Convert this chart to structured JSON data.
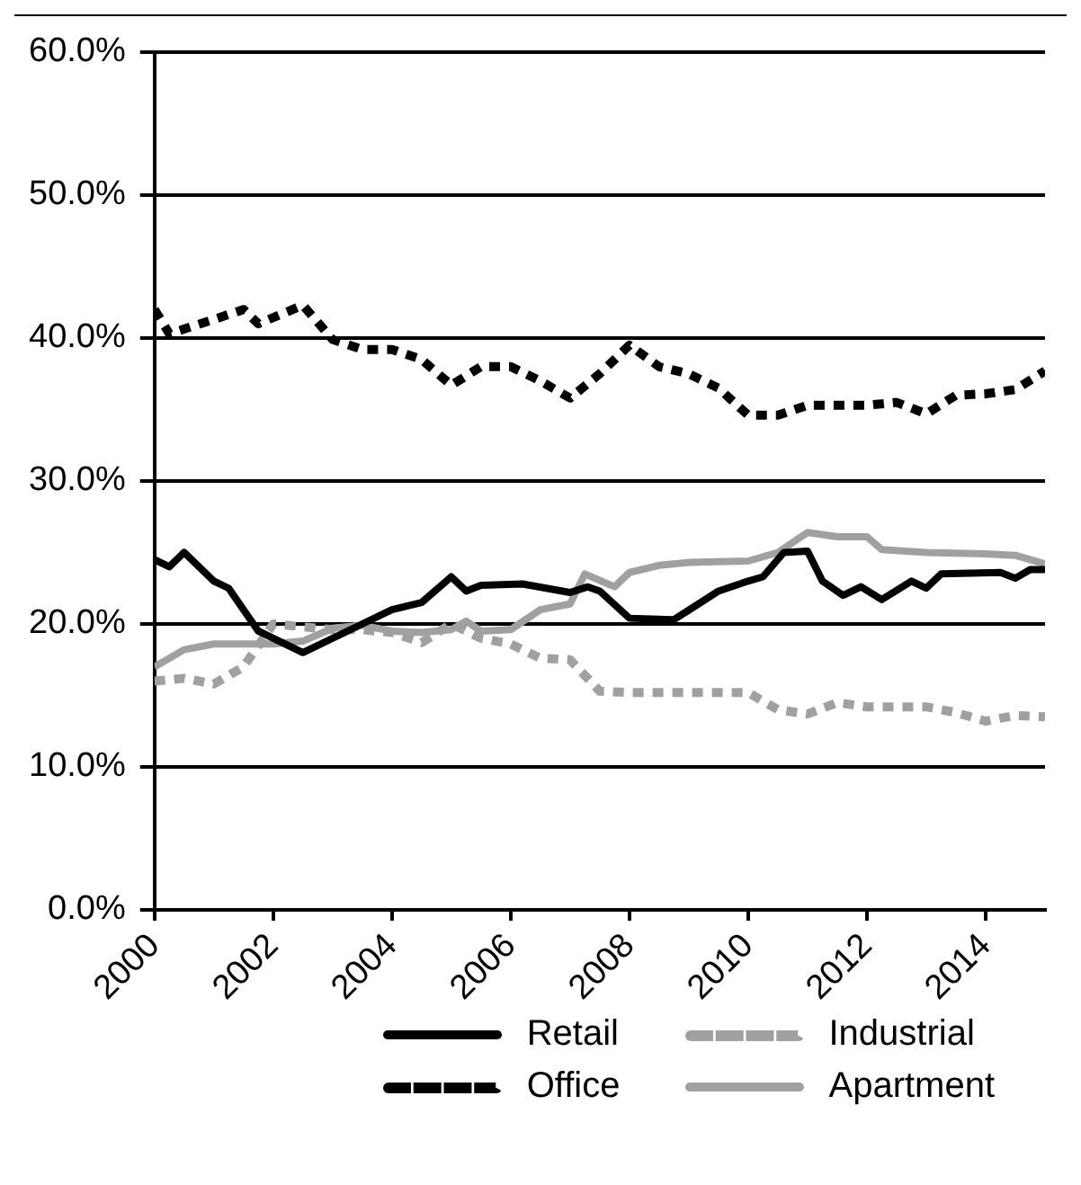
{
  "chart_data": {
    "type": "line",
    "xlim": [
      2000,
      2015
    ],
    "xticks": [
      2000,
      2002,
      2004,
      2006,
      2008,
      2010,
      2012,
      2014
    ],
    "ylim": [
      0,
      60
    ],
    "yticks": [
      {
        "value": 0,
        "label": "0.0%"
      },
      {
        "value": 10,
        "label": "10.0%"
      },
      {
        "value": 20,
        "label": "20.0%"
      },
      {
        "value": 30,
        "label": "30.0%"
      },
      {
        "value": 40,
        "label": "40.0%"
      },
      {
        "value": 50,
        "label": "50.0%"
      },
      {
        "value": 60,
        "label": "60.0%"
      }
    ],
    "grid": "y",
    "legend": "bottom",
    "marker": "none",
    "series": [
      {
        "name": "Retail",
        "color": "#000000",
        "line_style": "solid",
        "x": [
          2000,
          2000.25,
          2000.5,
          2001,
          2001.25,
          2001.75,
          2002.5,
          2003.5,
          2004,
          2004.5,
          2005,
          2005.25,
          2005.5,
          2006.2,
          2007,
          2007.3,
          2007.5,
          2008,
          2008.75,
          2009.5,
          2010,
          2010.25,
          2010.6,
          2011,
          2011.25,
          2011.6,
          2011.9,
          2012.25,
          2012.75,
          2013,
          2013.25,
          2014.25,
          2014.5,
          2014.75,
          2015
        ],
        "values": [
          24.5,
          24,
          25,
          23,
          22.5,
          19.5,
          18,
          20,
          21,
          21.5,
          23.3,
          22.3,
          22.7,
          22.8,
          22.2,
          22.6,
          22.3,
          20.4,
          20.3,
          22.3,
          23,
          23.3,
          25,
          25.1,
          23,
          22,
          22.6,
          21.7,
          23,
          22.5,
          23.5,
          23.6,
          23.2,
          23.8,
          23.8
        ]
      },
      {
        "name": "Industrial",
        "color": "#a0a0a0",
        "line_style": "dashed",
        "x": [
          2000,
          2000.5,
          2001,
          2001.5,
          2002,
          2002.5,
          2003,
          2003.5,
          2004,
          2004.5,
          2005,
          2005.5,
          2006,
          2006.5,
          2007,
          2007.5,
          2008,
          2008.5,
          2009,
          2010,
          2010.5,
          2011,
          2011.5,
          2012,
          2012.5,
          2013,
          2013.5,
          2014,
          2014.5,
          2015
        ],
        "values": [
          16,
          16.2,
          15.8,
          17,
          20,
          19.8,
          19.6,
          19.6,
          19.4,
          18.7,
          20,
          19,
          18.6,
          17.6,
          17.5,
          15.3,
          15.2,
          15.2,
          15.2,
          15.2,
          14,
          13.7,
          14.5,
          14.2,
          14.2,
          14.2,
          13.8,
          13.2,
          13.6,
          13.5
        ]
      },
      {
        "name": "Office",
        "color": "#000000",
        "line_style": "dashed",
        "x": [
          2000,
          2000.25,
          2001,
          2001.5,
          2001.75,
          2002.5,
          2003,
          2003.5,
          2004,
          2004.5,
          2005,
          2005.5,
          2006,
          2006.5,
          2007,
          2007.5,
          2008,
          2008.5,
          2009,
          2009.5,
          2010,
          2010.5,
          2011,
          2012,
          2012.5,
          2013,
          2013.5,
          2014,
          2014.5,
          2015
        ],
        "values": [
          42,
          40.3,
          41.3,
          42,
          41,
          42.3,
          39.9,
          39.2,
          39.2,
          38.5,
          36.7,
          38,
          38,
          37,
          35.8,
          37.5,
          39.5,
          38,
          37.5,
          36.5,
          34.6,
          34.6,
          35.3,
          35.3,
          35.5,
          34.7,
          36,
          36.1,
          36.4,
          37.7
        ]
      },
      {
        "name": "Apartment",
        "color": "#a0a0a0",
        "line_style": "solid",
        "x": [
          2000,
          2000.5,
          2001,
          2002,
          2002.5,
          2003,
          2003.5,
          2004,
          2004.5,
          2005,
          2005.25,
          2005.5,
          2006,
          2006.5,
          2007,
          2007.25,
          2007.75,
          2008,
          2008.5,
          2009,
          2010,
          2010.5,
          2011,
          2011.5,
          2012,
          2012.25,
          2013,
          2014,
          2014.5,
          2015
        ],
        "values": [
          17,
          18.2,
          18.6,
          18.6,
          18.8,
          19.7,
          19.9,
          19.5,
          19.4,
          19.6,
          20.2,
          19.5,
          19.6,
          21,
          21.4,
          23.5,
          22.6,
          23.6,
          24.1,
          24.3,
          24.4,
          25,
          26.4,
          26.1,
          26.1,
          25.2,
          25,
          24.9,
          24.8,
          24.2
        ]
      }
    ]
  }
}
